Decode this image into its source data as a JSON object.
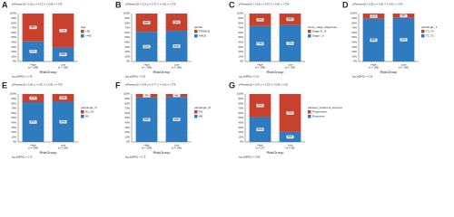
{
  "chart_data": [
    {
      "type": "bar",
      "stacked": true,
      "panel_label": "A",
      "subtitle": "χ²Pearson(1) = 2.25, p = 0.13, V = 0.06, n = 379",
      "caption": "log_e(BF01) = 1.35",
      "xlabel": "RiskGroup",
      "legend_title": "Age",
      "categories": [
        "High",
        "Low"
      ],
      "category_counts": [
        "(n = 189)",
        "(n = 190)"
      ],
      "ylim": [
        0,
        100
      ],
      "yticks": [
        {
          "value": 0,
          "label": "0%"
        },
        {
          "value": 10,
          "label": "10%"
        },
        {
          "value": 20,
          "label": "20%"
        },
        {
          "value": 30,
          "label": "30%"
        },
        {
          "value": 40,
          "label": "40%"
        },
        {
          "value": 50,
          "label": "50%"
        },
        {
          "value": 60,
          "label": "60%"
        },
        {
          "value": 70,
          "label": "70%"
        },
        {
          "value": 80,
          "label": "80%"
        },
        {
          "value": 90,
          "label": "90%"
        },
        {
          "value": 100,
          "label": "100%"
        }
      ],
      "series": [
        {
          "name": ">65",
          "color": "#c8412f",
          "values": [
            58,
            71
          ],
          "value_labels": [
            "58%",
            "71%"
          ]
        },
        {
          "name": "<=65",
          "color": "#2e7bc0",
          "values": [
            42,
            29
          ],
          "value_labels": [
            "42%",
            "29%"
          ]
        }
      ]
    },
    {
      "type": "bar",
      "stacked": true,
      "panel_label": "B",
      "subtitle": "χ²Pearson(1) = 0.12, p = 0.73, V = 0.00, n = 379",
      "caption": "log_e(BF01) = 2.61",
      "xlabel": "RiskGroup",
      "legend_title": "gender",
      "categories": [
        "High",
        "Low"
      ],
      "category_counts": [
        "(n = 189)",
        "(n = 190)"
      ],
      "ylim": [
        0,
        100
      ],
      "yticks": [
        {
          "value": 0,
          "label": "0%"
        },
        {
          "value": 10,
          "label": "10%"
        },
        {
          "value": 20,
          "label": "20%"
        },
        {
          "value": 30,
          "label": "30%"
        },
        {
          "value": 40,
          "label": "40%"
        },
        {
          "value": 50,
          "label": "50%"
        },
        {
          "value": 60,
          "label": "60%"
        },
        {
          "value": 70,
          "label": "70%"
        },
        {
          "value": 80,
          "label": "80%"
        },
        {
          "value": 90,
          "label": "90%"
        },
        {
          "value": 100,
          "label": "100%"
        }
      ],
      "series": [
        {
          "name": "FEMALE",
          "color": "#c8412f",
          "values": [
            38,
            36
          ],
          "value_labels": [
            "38%",
            "36%"
          ]
        },
        {
          "name": "MALE",
          "color": "#2e7bc0",
          "values": [
            62,
            64
          ],
          "value_labels": [
            "62%",
            "64%"
          ]
        }
      ]
    },
    {
      "type": "bar",
      "stacked": true,
      "panel_label": "C",
      "subtitle": "χ²Pearson(1) = 0.18, p = 0.67, V = 0.00, n = 379",
      "caption": "log_e(BF01) = 2.52",
      "xlabel": "RiskGroup",
      "legend_title": "tumor_stage_diagnoses",
      "categories": [
        "High",
        "Low"
      ],
      "category_counts": [
        "(n = 189)",
        "(n = 190)"
      ],
      "ylim": [
        0,
        100
      ],
      "yticks": [
        {
          "value": 0,
          "label": "0%"
        },
        {
          "value": 10,
          "label": "10%"
        },
        {
          "value": 20,
          "label": "20%"
        },
        {
          "value": 30,
          "label": "30%"
        },
        {
          "value": 40,
          "label": "40%"
        },
        {
          "value": 50,
          "label": "50%"
        },
        {
          "value": 60,
          "label": "60%"
        },
        {
          "value": 70,
          "label": "70%"
        },
        {
          "value": 80,
          "label": "80%"
        },
        {
          "value": 90,
          "label": "90%"
        },
        {
          "value": 100,
          "label": "100%"
        }
      ],
      "series": [
        {
          "name": "Stage III_IV",
          "color": "#c8412f",
          "values": [
            26,
            24
          ],
          "value_labels": [
            "26%",
            "24%"
          ]
        },
        {
          "name": "Stage I_II",
          "color": "#2e7bc0",
          "values": [
            74,
            76
          ],
          "value_labels": [
            "74%",
            "76%"
          ]
        }
      ]
    },
    {
      "type": "bar",
      "stacked": true,
      "panel_label": "D",
      "subtitle": "χ²Pearson(1) = 0.29, p = 0.59, V = 0.00, n = 379",
      "caption": "log_e(BF01) = 2.58",
      "xlabel": "RiskGroup",
      "legend_title": "pathologic_T",
      "categories": [
        "High",
        "Low"
      ],
      "category_counts": [
        "(n = 189)",
        "(n = 190)"
      ],
      "ylim": [
        0,
        100
      ],
      "yticks": [
        {
          "value": 0,
          "label": "0%"
        },
        {
          "value": 10,
          "label": "10%"
        },
        {
          "value": 20,
          "label": "20%"
        },
        {
          "value": 30,
          "label": "30%"
        },
        {
          "value": 40,
          "label": "40%"
        },
        {
          "value": 50,
          "label": "50%"
        },
        {
          "value": 60,
          "label": "60%"
        },
        {
          "value": 70,
          "label": "70%"
        },
        {
          "value": 80,
          "label": "80%"
        },
        {
          "value": 90,
          "label": "90%"
        },
        {
          "value": 100,
          "label": "100%"
        }
      ],
      "series": [
        {
          "name": "T3_T4",
          "color": "#c8412f",
          "values": [
            11,
            9
          ],
          "value_labels": [
            "11%",
            "9%"
          ]
        },
        {
          "name": "T1_T2",
          "color": "#2e7bc0",
          "values": [
            89,
            91
          ],
          "value_labels": [
            "89%",
            "91%"
          ]
        }
      ]
    },
    {
      "type": "bar",
      "stacked": true,
      "panel_label": "E",
      "subtitle": "χ²Pearson(1) = 0.05, p = 0.82, V = 0.00, n = 379",
      "caption": "log_e(BF01) = 2.70",
      "xlabel": "RiskGroup",
      "legend_title": "pathologic_N",
      "categories": [
        "High",
        "Low"
      ],
      "category_counts": [
        "(n = 189)",
        "(n = 190)"
      ],
      "ylim": [
        0,
        100
      ],
      "yticks": [
        {
          "value": 0,
          "label": "0%"
        },
        {
          "value": 10,
          "label": "10%"
        },
        {
          "value": 20,
          "label": "20%"
        },
        {
          "value": 30,
          "label": "30%"
        },
        {
          "value": 40,
          "label": "40%"
        },
        {
          "value": 50,
          "label": "50%"
        },
        {
          "value": 60,
          "label": "60%"
        },
        {
          "value": 70,
          "label": "70%"
        },
        {
          "value": 80,
          "label": "80%"
        },
        {
          "value": 90,
          "label": "90%"
        },
        {
          "value": 100,
          "label": "100%"
        }
      ],
      "series": [
        {
          "name": "N1_N3",
          "color": "#c8412f",
          "values": [
            17,
            16
          ],
          "value_labels": [
            "17%",
            "16%"
          ]
        },
        {
          "name": "N0",
          "color": "#2e7bc0",
          "values": [
            83,
            84
          ],
          "value_labels": [
            "83%",
            "84%"
          ]
        }
      ]
    },
    {
      "type": "bar",
      "stacked": true,
      "panel_label": "F",
      "subtitle": "χ²Pearson(1) = 0.09, p = 0.77, V = 0.00, n = 379",
      "caption": "log_e(BF01) = 2.75",
      "xlabel": "RiskGroup",
      "legend_title": "pathologic_M",
      "categories": [
        "High",
        "Low"
      ],
      "category_counts": [
        "(n = 189)",
        "(n = 190)"
      ],
      "ylim": [
        0,
        100
      ],
      "yticks": [
        {
          "value": 0,
          "label": "0%"
        },
        {
          "value": 10,
          "label": "10%"
        },
        {
          "value": 20,
          "label": "20%"
        },
        {
          "value": 30,
          "label": "30%"
        },
        {
          "value": 40,
          "label": "40%"
        },
        {
          "value": 50,
          "label": "50%"
        },
        {
          "value": 60,
          "label": "60%"
        },
        {
          "value": 70,
          "label": "70%"
        },
        {
          "value": 80,
          "label": "80%"
        },
        {
          "value": 90,
          "label": "90%"
        },
        {
          "value": 100,
          "label": "100%"
        }
      ],
      "series": [
        {
          "name": "M1",
          "color": "#c8412f",
          "values": [
            7,
            6
          ],
          "value_labels": [
            "7%",
            "6%"
          ]
        },
        {
          "name": "M0",
          "color": "#2e7bc0",
          "values": [
            93,
            94
          ],
          "value_labels": [
            "93%",
            "94%"
          ]
        }
      ]
    },
    {
      "type": "bar",
      "stacked": true,
      "panel_label": "G",
      "subtitle": "χ²Pearson(1) = 4.87, p = 0.03, V = 0.28, n = 62",
      "caption": "log_e(BF01) = -0.89",
      "xlabel": "RiskGroup",
      "legend_title": "followup_treatment_success",
      "categories": [
        "High",
        "Low"
      ],
      "category_counts": [
        "(n = 27)",
        "(n = 35)"
      ],
      "ylim": [
        0,
        100
      ],
      "yticks": [
        {
          "value": 0,
          "label": "0%"
        },
        {
          "value": 10,
          "label": "10%"
        },
        {
          "value": 20,
          "label": "20%"
        },
        {
          "value": 30,
          "label": "30%"
        },
        {
          "value": 40,
          "label": "40%"
        },
        {
          "value": 50,
          "label": "50%"
        },
        {
          "value": 60,
          "label": "60%"
        },
        {
          "value": 70,
          "label": "70%"
        },
        {
          "value": 80,
          "label": "80%"
        },
        {
          "value": 90,
          "label": "90%"
        },
        {
          "value": 100,
          "label": "100%"
        }
      ],
      "series": [
        {
          "name": "Progression",
          "color": "#c8412f",
          "values": [
            48,
            79
          ],
          "value_labels": [
            "48%",
            "79%"
          ]
        },
        {
          "name": "Response",
          "color": "#2e7bc0",
          "values": [
            52,
            21
          ],
          "value_labels": [
            "52%",
            "21%"
          ]
        }
      ]
    }
  ]
}
